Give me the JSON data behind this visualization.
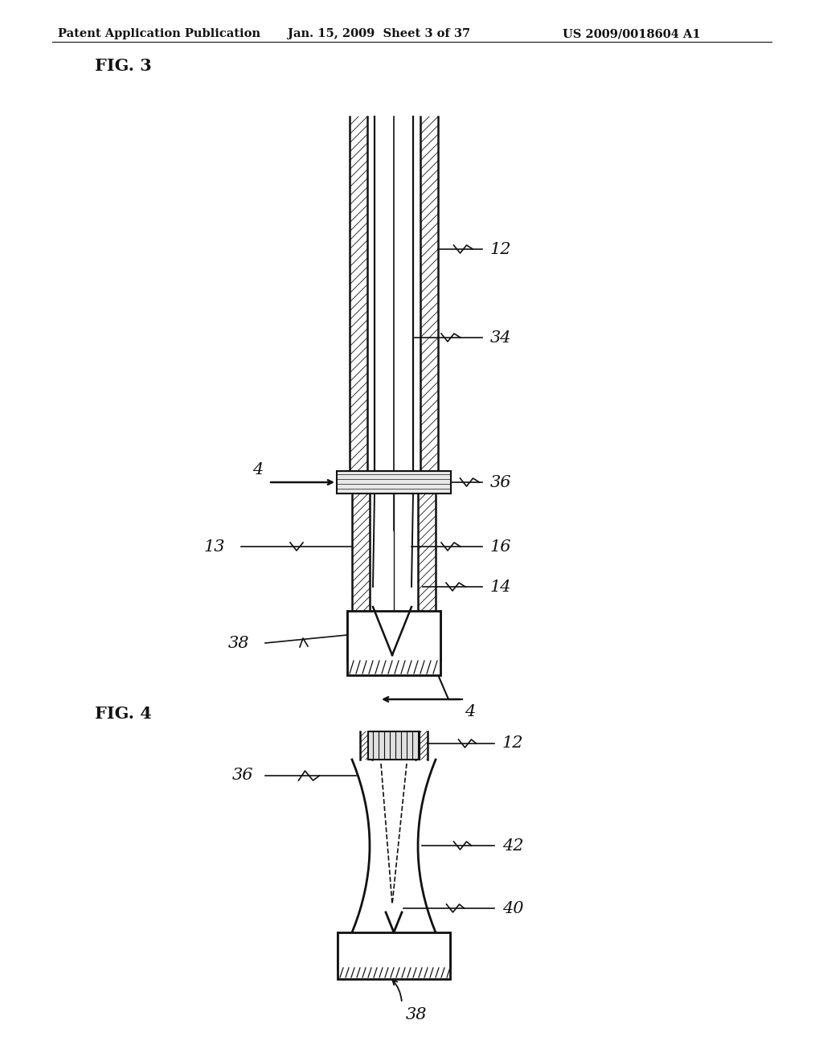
{
  "background_color": "#ffffff",
  "header_left": "Patent Application Publication",
  "header_center": "Jan. 15, 2009  Sheet 3 of 37",
  "header_right": "US 2009/0018604 A1",
  "fig3_label": "FIG. 3",
  "fig4_label": "FIG. 4",
  "header_fontsize": 10.5,
  "fig_label_fontsize": 15,
  "annotation_fontsize": 15
}
